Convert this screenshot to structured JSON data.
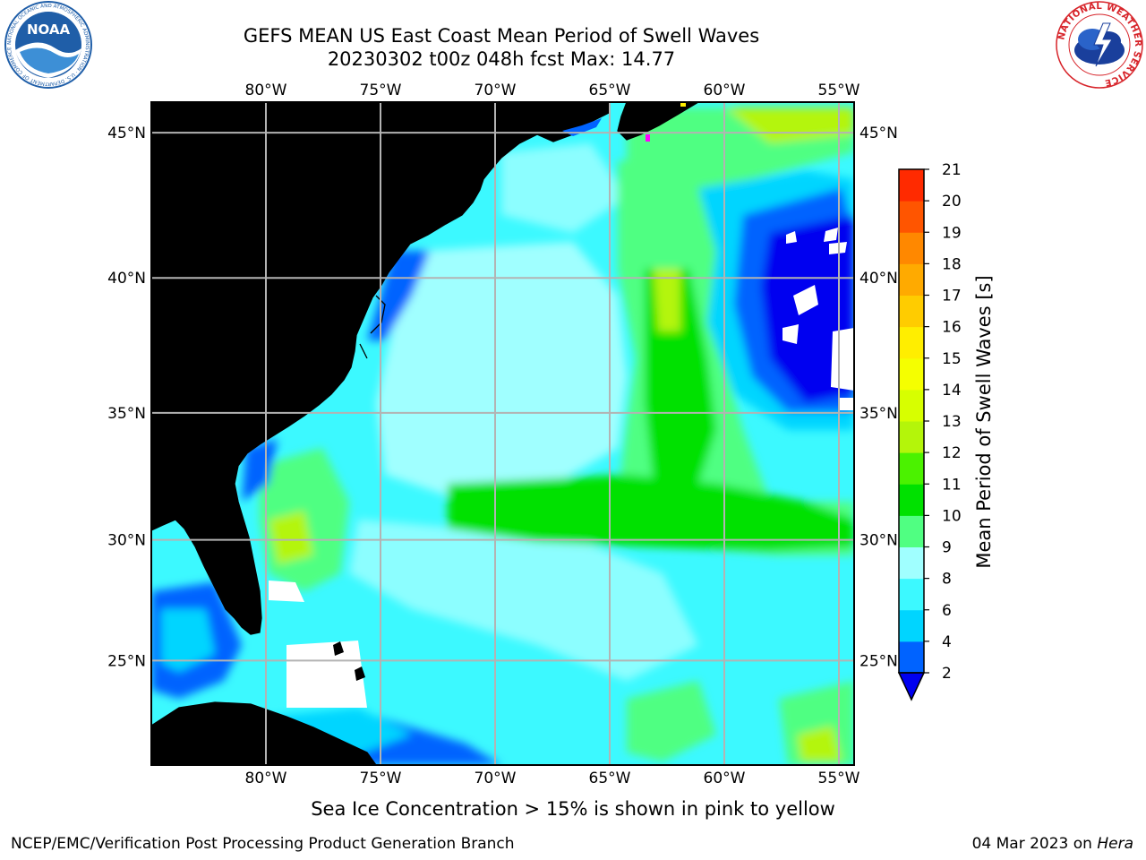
{
  "title": {
    "line1": "GEFS MEAN US East Coast Mean Period of Swell Waves",
    "line2": "20230302 t00z 048h fcst   Max: 14.77"
  },
  "logos": {
    "noaa": {
      "text": "NOAA",
      "ring_text": "NATIONAL OCEANIC AND ATMOSPHERIC ADMINISTRATION · U.S. DEPARTMENT OF COMMERCE",
      "color": "#1f5ea8"
    },
    "nws": {
      "ring_text": "NATIONAL WEATHER SERVICE",
      "color": "#d7242a"
    }
  },
  "map": {
    "lon_range": [
      -85,
      -54
    ],
    "lat_range": [
      20.5,
      46
    ],
    "lon_ticks": [
      "80°W",
      "75°W",
      "70°W",
      "65°W",
      "60°W",
      "55°W"
    ],
    "lat_ticks": [
      "45°N",
      "40°N",
      "35°N",
      "30°N",
      "25°N"
    ],
    "land_color": "#efeedc",
    "grid_color": "#b3b3b3"
  },
  "colorbar": {
    "title": "Mean Period of Swell Waves [s]",
    "levels": [
      "2",
      "4",
      "6",
      "8",
      "9",
      "10",
      "11",
      "12",
      "13",
      "14",
      "15",
      "16",
      "17",
      "18",
      "19",
      "20",
      "21"
    ],
    "colors": [
      "#0063ff",
      "#00d5ff",
      "#3cf9ff",
      "#a0ffff",
      "#50ff82",
      "#00e100",
      "#4bf200",
      "#b4f50a",
      "#d7ff00",
      "#f5ff00",
      "#ffee00",
      "#ffcc00",
      "#ffaa00",
      "#ff8800",
      "#ff5500",
      "#ff2a00"
    ],
    "under_color": "#0000f0"
  },
  "caption": "Sea Ice Concentration > 15% is shown in pink to yellow",
  "footer": {
    "credit": "NCEP/EMC/Verification Post Processing Product Generation Branch",
    "date": "04 Mar 2023 on",
    "system": "Hera"
  }
}
